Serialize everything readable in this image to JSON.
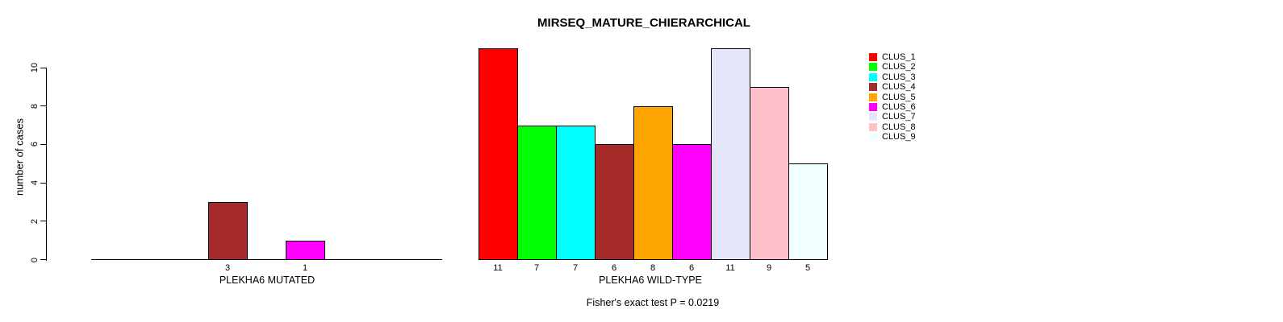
{
  "title": "MIRSEQ_MATURE_CHIERARCHICAL",
  "y_axis": {
    "label": "number of cases",
    "ticks": [
      0,
      2,
      4,
      6,
      8,
      10
    ],
    "max": 10
  },
  "panels": {
    "mutated": {
      "xlabel": "PLEKHA6 MUTATED",
      "values": [
        0,
        0,
        0,
        3,
        0,
        1,
        0,
        0,
        0
      ],
      "bar_labels": [
        "",
        "",
        "",
        "3",
        "",
        "1",
        "",
        "",
        ""
      ]
    },
    "wild_type": {
      "xlabel": "PLEKHA6 WILD-TYPE",
      "values": [
        11,
        7,
        7,
        6,
        8,
        6,
        11,
        9,
        5
      ],
      "bar_labels": [
        "11",
        "7",
        "7",
        "6",
        "8",
        "6",
        "11",
        "9",
        "5"
      ]
    }
  },
  "footnote": "Fisher's exact test P = 0.0219",
  "legend": {
    "items": [
      {
        "label": "CLUS_1",
        "color": "#FF0000"
      },
      {
        "label": "CLUS_2",
        "color": "#00FF00"
      },
      {
        "label": "CLUS_3",
        "color": "#00FFFF"
      },
      {
        "label": "CLUS_4",
        "color": "#A52A2A"
      },
      {
        "label": "CLUS_5",
        "color": "#FFA500"
      },
      {
        "label": "CLUS_6",
        "color": "#FF00FF"
      },
      {
        "label": "CLUS_7",
        "color": "#E6E6FA"
      },
      {
        "label": "CLUS_8",
        "color": "#FFC0CB"
      },
      {
        "label": "CLUS_9",
        "color": "#F0FFFF"
      }
    ]
  },
  "chart_data": [
    {
      "type": "bar",
      "title": "MIRSEQ_MATURE_CHIERARCHICAL",
      "xlabel": "PLEKHA6 MUTATED",
      "ylabel": "number of cases",
      "ylim": [
        0,
        10
      ],
      "grid": false,
      "legend_position": "right",
      "categories": [
        "CLUS_1",
        "CLUS_2",
        "CLUS_3",
        "CLUS_4",
        "CLUS_5",
        "CLUS_6",
        "CLUS_7",
        "CLUS_8",
        "CLUS_9"
      ],
      "values": [
        0,
        0,
        0,
        3,
        0,
        1,
        0,
        0,
        0
      ],
      "colors": [
        "#FF0000",
        "#00FF00",
        "#00FFFF",
        "#A52A2A",
        "#FFA500",
        "#FF00FF",
        "#E6E6FA",
        "#FFC0CB",
        "#F0FFFF"
      ]
    },
    {
      "type": "bar",
      "title": "MIRSEQ_MATURE_CHIERARCHICAL",
      "xlabel": "PLEKHA6 WILD-TYPE",
      "ylabel": "number of cases",
      "ylim": [
        0,
        10
      ],
      "grid": false,
      "legend_position": "right",
      "categories": [
        "CLUS_1",
        "CLUS_2",
        "CLUS_3",
        "CLUS_4",
        "CLUS_5",
        "CLUS_6",
        "CLUS_7",
        "CLUS_8",
        "CLUS_9"
      ],
      "values": [
        11,
        7,
        7,
        6,
        8,
        6,
        11,
        9,
        5
      ],
      "colors": [
        "#FF0000",
        "#00FF00",
        "#00FFFF",
        "#A52A2A",
        "#FFA500",
        "#FF00FF",
        "#E6E6FA",
        "#FFC0CB",
        "#F0FFFF"
      ],
      "annotation": "Fisher's exact test P = 0.0219"
    }
  ]
}
